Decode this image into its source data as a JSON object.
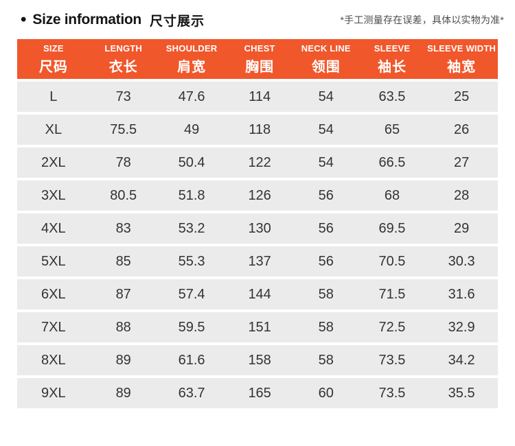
{
  "header": {
    "bullet": "•",
    "title_en": "Size information",
    "title_cn": "尺寸展示",
    "note": "*手工测量存在误差，具体以实物为准*"
  },
  "colors": {
    "header_bg": "#f0572b",
    "header_text": "#ffffff",
    "row_bg": "#ebebeb",
    "cell_text": "#333333"
  },
  "table": {
    "columns": [
      {
        "en": "SIZE",
        "cn": "尺码"
      },
      {
        "en": "LENGTH",
        "cn": "衣长"
      },
      {
        "en": "SHOULDER",
        "cn": "肩宽"
      },
      {
        "en": "CHEST",
        "cn": "胸围"
      },
      {
        "en": "NECK LINE",
        "cn": "领围"
      },
      {
        "en": "SLEEVE",
        "cn": "袖长"
      },
      {
        "en": "SLEEVE WIDTH",
        "cn": "袖宽"
      }
    ],
    "rows": [
      {
        "cells": [
          "L",
          "73",
          "47.6",
          "114",
          "54",
          "63.5",
          "25"
        ]
      },
      {
        "cells": [
          "XL",
          "75.5",
          "49",
          "118",
          "54",
          "65",
          "26"
        ]
      },
      {
        "cells": [
          "2XL",
          "78",
          "50.4",
          "122",
          "54",
          "66.5",
          "27"
        ]
      },
      {
        "cells": [
          "3XL",
          "80.5",
          "51.8",
          "126",
          "56",
          "68",
          "28"
        ]
      },
      {
        "cells": [
          "4XL",
          "83",
          "53.2",
          "130",
          "56",
          "69.5",
          "29"
        ]
      },
      {
        "cells": [
          "5XL",
          "85",
          "55.3",
          "137",
          "56",
          "70.5",
          "30.3"
        ]
      },
      {
        "cells": [
          "6XL",
          "87",
          "57.4",
          "144",
          "58",
          "71.5",
          "31.6"
        ]
      },
      {
        "cells": [
          "7XL",
          "88",
          "59.5",
          "151",
          "58",
          "72.5",
          "32.9"
        ]
      },
      {
        "cells": [
          "8XL",
          "89",
          "61.6",
          "158",
          "58",
          "73.5",
          "34.2"
        ]
      },
      {
        "cells": [
          "9XL",
          "89",
          "63.7",
          "165",
          "60",
          "73.5",
          "35.5"
        ]
      }
    ]
  }
}
